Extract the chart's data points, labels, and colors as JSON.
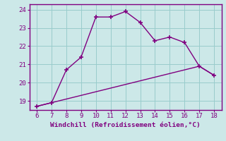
{
  "line1_x": [
    6,
    7,
    8,
    9,
    10,
    11,
    12,
    13,
    14,
    15,
    16,
    17,
    18
  ],
  "line1_y": [
    18.7,
    18.9,
    20.7,
    21.4,
    23.6,
    23.6,
    23.9,
    23.3,
    22.3,
    22.5,
    22.2,
    20.9,
    20.4
  ],
  "line2_x": [
    6,
    7,
    8,
    9,
    10,
    11,
    12,
    13,
    14,
    15,
    16,
    17,
    18
  ],
  "line2_y": [
    18.7,
    18.9,
    19.1,
    19.3,
    19.5,
    19.7,
    19.9,
    20.1,
    20.3,
    20.5,
    20.7,
    20.9,
    20.4
  ],
  "line_color": "#800080",
  "bg_color": "#cce8e8",
  "grid_color": "#99cccc",
  "xlabel": "Windchill (Refroidissement éolien,°C)",
  "xlim": [
    5.5,
    18.5
  ],
  "ylim": [
    18.5,
    24.3
  ],
  "xticks": [
    6,
    7,
    8,
    9,
    10,
    11,
    12,
    13,
    14,
    15,
    16,
    17,
    18
  ],
  "yticks": [
    19,
    20,
    21,
    22,
    23,
    24
  ],
  "tick_color": "#800080",
  "label_color": "#800080",
  "spine_color": "#800080",
  "marker": "+"
}
